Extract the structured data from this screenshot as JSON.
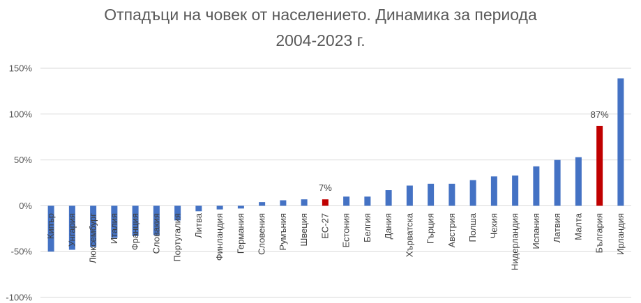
{
  "chart_data": {
    "type": "bar",
    "title_line1": "Отпадъци на човек от населението. Динамика за периода",
    "title_line2": "2004-2023 г.",
    "categories": [
      "Кипър",
      "Унгария",
      "Люксембург",
      "Италия",
      "Франция",
      "Словакия",
      "Португалия",
      "Литва",
      "Финландия",
      "Германия",
      "Словения",
      "Румъния",
      "Швеция",
      "ЕС-27",
      "Естония",
      "Белгия",
      "Дания",
      "Хърватска",
      "Гърция",
      "Австрия",
      "Полша",
      "Чехия",
      "Нидерландия",
      "Испания",
      "Латвия",
      "Малта",
      "България",
      "Ирландия"
    ],
    "values": [
      -50,
      -48,
      -45,
      -35,
      -33,
      -32,
      -16,
      -6,
      -4,
      -3,
      4,
      6,
      7,
      7,
      10,
      10,
      17,
      22,
      24,
      24,
      28,
      32,
      33,
      43,
      50,
      53,
      87,
      139
    ],
    "highlight": [
      "ЕС-27",
      "България"
    ],
    "data_labels": {
      "ЕС-27": "7%",
      "България": "87%"
    },
    "yticks": [
      "150%",
      "100%",
      "50%",
      "0%",
      "-50%",
      "-100%"
    ],
    "ylim": [
      -100,
      150
    ],
    "xlabel": "",
    "ylabel": "",
    "grid": true,
    "legend": "none",
    "colors": {
      "bar": "#4472c4",
      "highlight": "#c00000",
      "grid": "#d9d9d9",
      "text": "#595959"
    }
  }
}
